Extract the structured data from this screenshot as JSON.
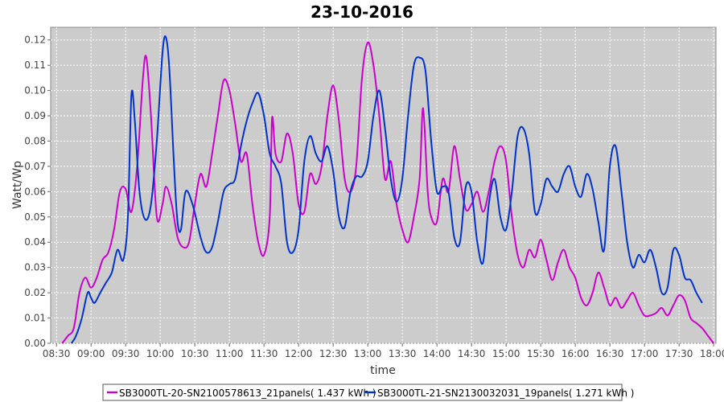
{
  "chart_data": {
    "type": "line",
    "title": "23-10-2016",
    "xlabel": "time",
    "ylabel": "Watt/Wp",
    "xlim": [
      "08:30",
      "18:00"
    ],
    "ylim": [
      0,
      0.125
    ],
    "x_ticks": [
      "08:30",
      "09:00",
      "09:30",
      "10:00",
      "10:30",
      "11:00",
      "11:30",
      "12:00",
      "12:30",
      "13:00",
      "13:30",
      "14:00",
      "14:30",
      "15:00",
      "15:30",
      "16:00",
      "16:30",
      "17:00",
      "17:30",
      "18:00"
    ],
    "y_ticks": [
      "0.00",
      "0.01",
      "0.02",
      "0.03",
      "0.04",
      "0.05",
      "0.06",
      "0.07",
      "0.08",
      "0.09",
      "0.10",
      "0.11",
      "0.12"
    ],
    "grid": true,
    "legend_position": "bottom",
    "series": [
      {
        "name": "SB3000TL-20-SN2100578613_21panels( 1.437 kWh )",
        "color": "#cc00cc",
        "points": [
          [
            "08:35",
            0.0
          ],
          [
            "08:40",
            0.003
          ],
          [
            "08:45",
            0.006
          ],
          [
            "08:50",
            0.02
          ],
          [
            "08:55",
            0.026
          ],
          [
            "09:00",
            0.022
          ],
          [
            "09:05",
            0.026
          ],
          [
            "09:10",
            0.033
          ],
          [
            "09:15",
            0.036
          ],
          [
            "09:20",
            0.045
          ],
          [
            "09:25",
            0.06
          ],
          [
            "09:30",
            0.061
          ],
          [
            "09:35",
            0.052
          ],
          [
            "09:40",
            0.07
          ],
          [
            "09:45",
            0.105
          ],
          [
            "09:48",
            0.113
          ],
          [
            "09:52",
            0.09
          ],
          [
            "09:57",
            0.05
          ],
          [
            "10:02",
            0.055
          ],
          [
            "10:05",
            0.062
          ],
          [
            "10:10",
            0.055
          ],
          [
            "10:15",
            0.042
          ],
          [
            "10:20",
            0.038
          ],
          [
            "10:25",
            0.04
          ],
          [
            "10:30",
            0.055
          ],
          [
            "10:35",
            0.067
          ],
          [
            "10:40",
            0.062
          ],
          [
            "10:45",
            0.075
          ],
          [
            "10:50",
            0.09
          ],
          [
            "10:55",
            0.104
          ],
          [
            "11:00",
            0.1
          ],
          [
            "11:05",
            0.087
          ],
          [
            "11:10",
            0.072
          ],
          [
            "11:15",
            0.075
          ],
          [
            "11:20",
            0.055
          ],
          [
            "11:25",
            0.04
          ],
          [
            "11:30",
            0.035
          ],
          [
            "11:35",
            0.05
          ],
          [
            "11:37",
            0.089
          ],
          [
            "11:40",
            0.075
          ],
          [
            "11:45",
            0.072
          ],
          [
            "11:50",
            0.083
          ],
          [
            "11:55",
            0.075
          ],
          [
            "12:00",
            0.055
          ],
          [
            "12:05",
            0.052
          ],
          [
            "12:10",
            0.067
          ],
          [
            "12:15",
            0.063
          ],
          [
            "12:20",
            0.07
          ],
          [
            "12:25",
            0.09
          ],
          [
            "12:30",
            0.102
          ],
          [
            "12:35",
            0.088
          ],
          [
            "12:40",
            0.065
          ],
          [
            "12:45",
            0.06
          ],
          [
            "12:50",
            0.07
          ],
          [
            "12:55",
            0.105
          ],
          [
            "13:00",
            0.119
          ],
          [
            "13:05",
            0.11
          ],
          [
            "13:10",
            0.09
          ],
          [
            "13:15",
            0.065
          ],
          [
            "13:20",
            0.072
          ],
          [
            "13:25",
            0.055
          ],
          [
            "13:30",
            0.045
          ],
          [
            "13:35",
            0.04
          ],
          [
            "13:40",
            0.05
          ],
          [
            "13:45",
            0.065
          ],
          [
            "13:48",
            0.093
          ],
          [
            "13:52",
            0.06
          ],
          [
            "13:55",
            0.05
          ],
          [
            "14:00",
            0.048
          ],
          [
            "14:05",
            0.065
          ],
          [
            "14:10",
            0.06
          ],
          [
            "14:15",
            0.078
          ],
          [
            "14:20",
            0.065
          ],
          [
            "14:25",
            0.053
          ],
          [
            "14:30",
            0.055
          ],
          [
            "14:35",
            0.06
          ],
          [
            "14:40",
            0.052
          ],
          [
            "14:45",
            0.06
          ],
          [
            "14:50",
            0.072
          ],
          [
            "14:55",
            0.078
          ],
          [
            "15:00",
            0.072
          ],
          [
            "15:05",
            0.05
          ],
          [
            "15:10",
            0.035
          ],
          [
            "15:15",
            0.03
          ],
          [
            "15:20",
            0.037
          ],
          [
            "15:25",
            0.034
          ],
          [
            "15:30",
            0.041
          ],
          [
            "15:35",
            0.033
          ],
          [
            "15:40",
            0.025
          ],
          [
            "15:45",
            0.032
          ],
          [
            "15:50",
            0.037
          ],
          [
            "15:55",
            0.03
          ],
          [
            "16:00",
            0.026
          ],
          [
            "16:05",
            0.018
          ],
          [
            "16:10",
            0.015
          ],
          [
            "16:15",
            0.02
          ],
          [
            "16:20",
            0.028
          ],
          [
            "16:25",
            0.022
          ],
          [
            "16:30",
            0.015
          ],
          [
            "16:35",
            0.018
          ],
          [
            "16:40",
            0.014
          ],
          [
            "16:45",
            0.017
          ],
          [
            "16:50",
            0.02
          ],
          [
            "16:55",
            0.015
          ],
          [
            "17:00",
            0.011
          ],
          [
            "17:05",
            0.011
          ],
          [
            "17:10",
            0.012
          ],
          [
            "17:15",
            0.014
          ],
          [
            "17:20",
            0.011
          ],
          [
            "17:25",
            0.015
          ],
          [
            "17:30",
            0.019
          ],
          [
            "17:35",
            0.017
          ],
          [
            "17:40",
            0.01
          ],
          [
            "17:45",
            0.008
          ],
          [
            "17:50",
            0.006
          ],
          [
            "17:55",
            0.003
          ],
          [
            "18:00",
            0.0
          ]
        ]
      },
      {
        "name": "SB3000TL-21-SN2130032031_19panels( 1.271 kWh )",
        "color": "#0033cc",
        "points": [
          [
            "08:43",
            0.0
          ],
          [
            "08:47",
            0.003
          ],
          [
            "08:52",
            0.01
          ],
          [
            "08:57",
            0.02
          ],
          [
            "09:00",
            0.018
          ],
          [
            "09:03",
            0.016
          ],
          [
            "09:08",
            0.02
          ],
          [
            "09:13",
            0.024
          ],
          [
            "09:18",
            0.028
          ],
          [
            "09:23",
            0.037
          ],
          [
            "09:28",
            0.033
          ],
          [
            "09:32",
            0.05
          ],
          [
            "09:35",
            0.098
          ],
          [
            "09:38",
            0.088
          ],
          [
            "09:42",
            0.06
          ],
          [
            "09:47",
            0.049
          ],
          [
            "09:52",
            0.055
          ],
          [
            "09:57",
            0.08
          ],
          [
            "10:02",
            0.115
          ],
          [
            "10:05",
            0.121
          ],
          [
            "10:08",
            0.108
          ],
          [
            "10:12",
            0.07
          ],
          [
            "10:15",
            0.048
          ],
          [
            "10:18",
            0.045
          ],
          [
            "10:22",
            0.06
          ],
          [
            "10:28",
            0.055
          ],
          [
            "10:35",
            0.042
          ],
          [
            "10:40",
            0.036
          ],
          [
            "10:45",
            0.038
          ],
          [
            "10:50",
            0.048
          ],
          [
            "10:55",
            0.06
          ],
          [
            "11:00",
            0.063
          ],
          [
            "11:05",
            0.065
          ],
          [
            "11:10",
            0.078
          ],
          [
            "11:15",
            0.088
          ],
          [
            "11:20",
            0.095
          ],
          [
            "11:25",
            0.099
          ],
          [
            "11:30",
            0.09
          ],
          [
            "11:35",
            0.075
          ],
          [
            "11:40",
            0.07
          ],
          [
            "11:45",
            0.063
          ],
          [
            "11:50",
            0.04
          ],
          [
            "11:55",
            0.036
          ],
          [
            "12:00",
            0.045
          ],
          [
            "12:05",
            0.072
          ],
          [
            "12:10",
            0.082
          ],
          [
            "12:15",
            0.075
          ],
          [
            "12:20",
            0.072
          ],
          [
            "12:25",
            0.078
          ],
          [
            "12:30",
            0.068
          ],
          [
            "12:35",
            0.05
          ],
          [
            "12:40",
            0.046
          ],
          [
            "12:45",
            0.06
          ],
          [
            "12:50",
            0.066
          ],
          [
            "12:55",
            0.066
          ],
          [
            "13:00",
            0.072
          ],
          [
            "13:05",
            0.09
          ],
          [
            "13:10",
            0.1
          ],
          [
            "13:15",
            0.085
          ],
          [
            "13:20",
            0.065
          ],
          [
            "13:25",
            0.056
          ],
          [
            "13:30",
            0.065
          ],
          [
            "13:35",
            0.09
          ],
          [
            "13:40",
            0.11
          ],
          [
            "13:45",
            0.113
          ],
          [
            "13:50",
            0.108
          ],
          [
            "13:55",
            0.08
          ],
          [
            "14:00",
            0.06
          ],
          [
            "14:05",
            0.062
          ],
          [
            "14:10",
            0.06
          ],
          [
            "14:15",
            0.042
          ],
          [
            "14:20",
            0.04
          ],
          [
            "14:25",
            0.062
          ],
          [
            "14:30",
            0.06
          ],
          [
            "14:35",
            0.04
          ],
          [
            "14:40",
            0.032
          ],
          [
            "14:45",
            0.055
          ],
          [
            "14:50",
            0.065
          ],
          [
            "14:55",
            0.05
          ],
          [
            "15:00",
            0.045
          ],
          [
            "15:05",
            0.06
          ],
          [
            "15:10",
            0.082
          ],
          [
            "15:15",
            0.085
          ],
          [
            "15:20",
            0.075
          ],
          [
            "15:25",
            0.052
          ],
          [
            "15:30",
            0.055
          ],
          [
            "15:35",
            0.065
          ],
          [
            "15:40",
            0.062
          ],
          [
            "15:45",
            0.06
          ],
          [
            "15:50",
            0.067
          ],
          [
            "15:55",
            0.07
          ],
          [
            "16:00",
            0.062
          ],
          [
            "16:05",
            0.058
          ],
          [
            "16:10",
            0.067
          ],
          [
            "16:15",
            0.061
          ],
          [
            "16:20",
            0.048
          ],
          [
            "16:25",
            0.037
          ],
          [
            "16:30",
            0.07
          ],
          [
            "16:35",
            0.078
          ],
          [
            "16:40",
            0.06
          ],
          [
            "16:45",
            0.04
          ],
          [
            "16:50",
            0.03
          ],
          [
            "16:55",
            0.035
          ],
          [
            "17:00",
            0.032
          ],
          [
            "17:05",
            0.037
          ],
          [
            "17:10",
            0.03
          ],
          [
            "17:15",
            0.02
          ],
          [
            "17:20",
            0.022
          ],
          [
            "17:25",
            0.037
          ],
          [
            "17:30",
            0.035
          ],
          [
            "17:35",
            0.026
          ],
          [
            "17:40",
            0.025
          ],
          [
            "17:45",
            0.02
          ],
          [
            "17:50",
            0.016
          ]
        ]
      }
    ]
  }
}
